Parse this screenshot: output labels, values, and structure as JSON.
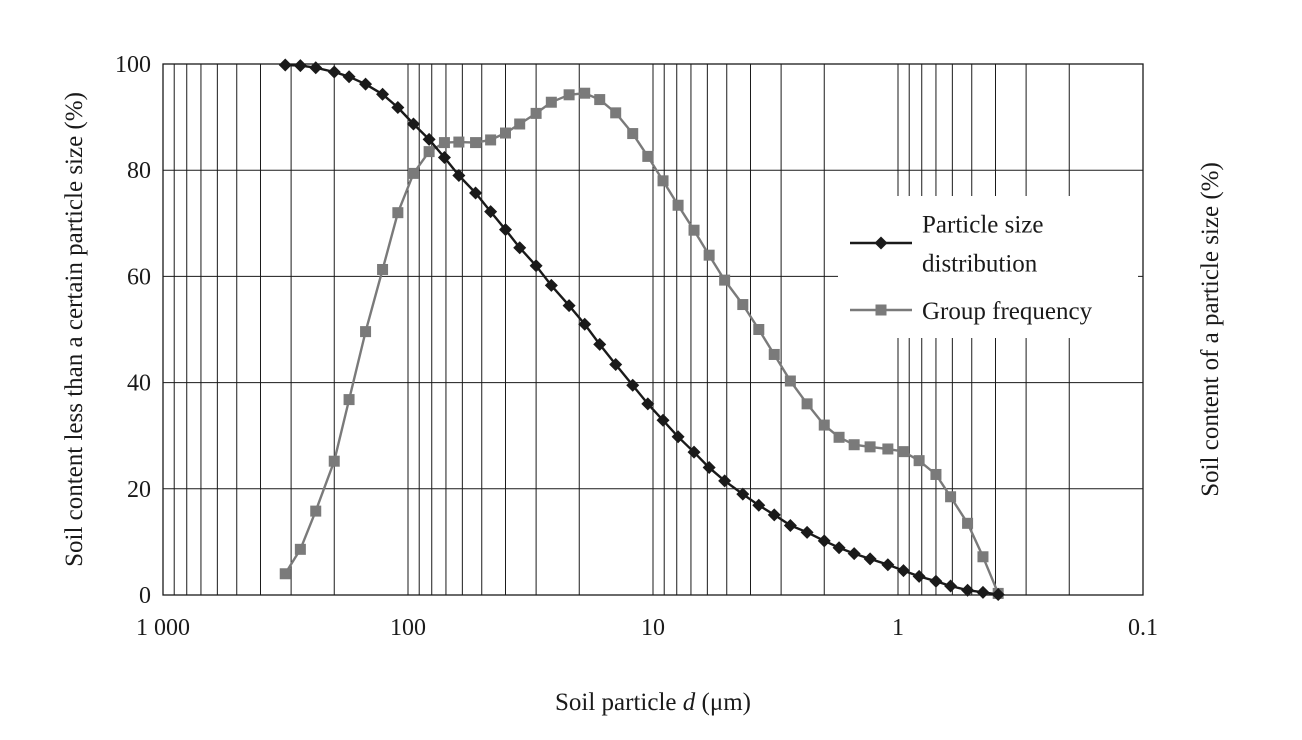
{
  "chart_data": {
    "type": "line",
    "x_scale": "log",
    "x_reversed": true,
    "xlim": [
      1000,
      0.1
    ],
    "ylim": [
      0,
      100
    ],
    "x_ticks": [
      {
        "value": 1000,
        "label": "1 000"
      },
      {
        "value": 100,
        "label": "100"
      },
      {
        "value": 10,
        "label": "10"
      },
      {
        "value": 1,
        "label": "1"
      },
      {
        "value": 0.1,
        "label": "0.1"
      }
    ],
    "y_ticks": [
      0,
      20,
      40,
      60,
      80,
      100
    ],
    "xlabel_prefix": "Soil particle ",
    "xlabel_var": "d",
    "xlabel_suffix": " (μm)",
    "ylabel": "Soil content less than a certain particle size (%)",
    "ylabel_right": "Soil content of a particle size (%)",
    "grid": true,
    "legend_position": "right",
    "series": [
      {
        "name_lines": [
          "Particle size",
          "distribution"
        ],
        "marker": "diamond",
        "color": "#1a1a1a",
        "points": [
          [
            317,
            99.8
          ],
          [
            275,
            99.7
          ],
          [
            238,
            99.3
          ],
          [
            200,
            98.5
          ],
          [
            174,
            97.6
          ],
          [
            149,
            96.2
          ],
          [
            127,
            94.3
          ],
          [
            110,
            91.8
          ],
          [
            95,
            88.7
          ],
          [
            82,
            85.8
          ],
          [
            71,
            82.4
          ],
          [
            62,
            79.0
          ],
          [
            53,
            75.7
          ],
          [
            46,
            72.2
          ],
          [
            40,
            68.8
          ],
          [
            35,
            65.4
          ],
          [
            30,
            62.0
          ],
          [
            26,
            58.3
          ],
          [
            22,
            54.5
          ],
          [
            19,
            51.0
          ],
          [
            16.5,
            47.2
          ],
          [
            14.2,
            43.4
          ],
          [
            12.1,
            39.5
          ],
          [
            10.5,
            36.0
          ],
          [
            9.1,
            32.9
          ],
          [
            7.9,
            29.8
          ],
          [
            6.8,
            26.9
          ],
          [
            5.9,
            24.0
          ],
          [
            5.1,
            21.5
          ],
          [
            4.3,
            19.0
          ],
          [
            3.7,
            16.9
          ],
          [
            3.2,
            15.1
          ],
          [
            2.75,
            13.1
          ],
          [
            2.35,
            11.8
          ],
          [
            2.0,
            10.2
          ],
          [
            1.74,
            8.9
          ],
          [
            1.51,
            7.8
          ],
          [
            1.3,
            6.8
          ],
          [
            1.1,
            5.7
          ],
          [
            0.95,
            4.6
          ],
          [
            0.82,
            3.5
          ],
          [
            0.7,
            2.6
          ],
          [
            0.61,
            1.7
          ],
          [
            0.52,
            0.9
          ],
          [
            0.45,
            0.5
          ],
          [
            0.39,
            0.1
          ]
        ]
      },
      {
        "name_lines": [
          "Group frequency"
        ],
        "marker": "square",
        "color": "#7a7a7a",
        "points": [
          [
            317,
            4.0
          ],
          [
            275,
            8.6
          ],
          [
            238,
            15.8
          ],
          [
            200,
            25.2
          ],
          [
            174,
            36.8
          ],
          [
            149,
            49.6
          ],
          [
            127,
            61.3
          ],
          [
            110,
            72.0
          ],
          [
            95,
            79.4
          ],
          [
            82,
            83.5
          ],
          [
            71,
            85.2
          ],
          [
            62,
            85.3
          ],
          [
            53,
            85.2
          ],
          [
            46,
            85.7
          ],
          [
            40,
            87.0
          ],
          [
            35,
            88.7
          ],
          [
            30,
            90.7
          ],
          [
            26,
            92.8
          ],
          [
            22,
            94.2
          ],
          [
            19,
            94.5
          ],
          [
            16.5,
            93.3
          ],
          [
            14.2,
            90.8
          ],
          [
            12.1,
            86.9
          ],
          [
            10.5,
            82.6
          ],
          [
            9.1,
            78.0
          ],
          [
            7.9,
            73.4
          ],
          [
            6.8,
            68.7
          ],
          [
            5.9,
            64.0
          ],
          [
            5.1,
            59.3
          ],
          [
            4.3,
            54.7
          ],
          [
            3.7,
            50.0
          ],
          [
            3.2,
            45.3
          ],
          [
            2.75,
            40.3
          ],
          [
            2.35,
            36.0
          ],
          [
            2.0,
            32.0
          ],
          [
            1.74,
            29.7
          ],
          [
            1.51,
            28.3
          ],
          [
            1.3,
            27.9
          ],
          [
            1.1,
            27.5
          ],
          [
            0.95,
            27.0
          ],
          [
            0.82,
            25.3
          ],
          [
            0.7,
            22.7
          ],
          [
            0.61,
            18.5
          ],
          [
            0.52,
            13.5
          ],
          [
            0.45,
            7.2
          ],
          [
            0.39,
            0.3
          ]
        ]
      }
    ]
  }
}
